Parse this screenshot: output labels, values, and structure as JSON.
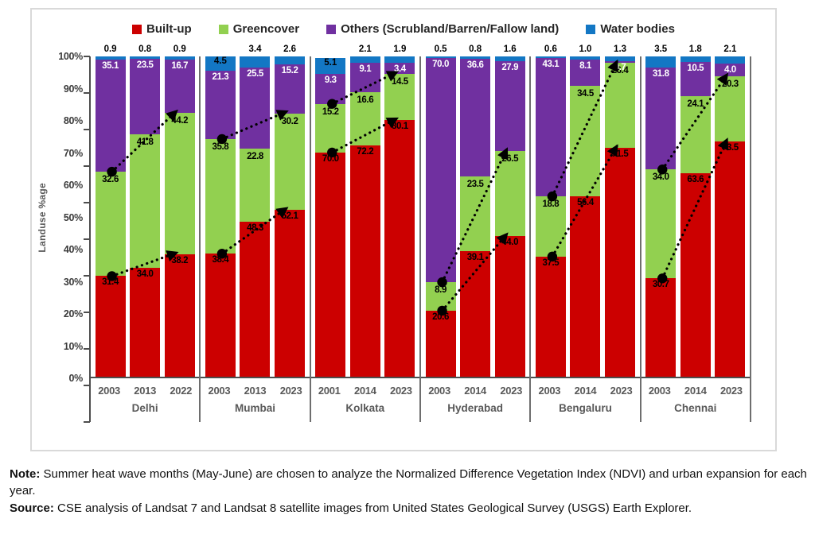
{
  "chart_data": {
    "type": "bar",
    "stacked": true,
    "title": "",
    "ylabel": "Landuse %age",
    "ylim": [
      0,
      100
    ],
    "yticks": [
      "0%",
      "10%",
      "20%",
      "30%",
      "40%",
      "50%",
      "60%",
      "70%",
      "80%",
      "90%",
      "100%"
    ],
    "grid": false,
    "legend_position": "top",
    "legend": [
      {
        "label": "Built-up",
        "color": "#CC0000"
      },
      {
        "label": "Greencover",
        "color": "#92D050"
      },
      {
        "label": "Others (Scrubland/Barren/Fallow land)",
        "color": "#7030A0"
      },
      {
        "label": "Water bodies",
        "color": "#1377C4"
      }
    ],
    "series_keys": [
      "built_up",
      "greencover",
      "others",
      "water"
    ],
    "annotations": "dotted black arrows with start dots show rise of built-up top and greencover top from first year bar to last year bar in each city group",
    "groups": [
      {
        "city": "Delhi",
        "bars": [
          {
            "year": "2003",
            "built_up": "31.4",
            "greencover": "32.6",
            "others": "35.1",
            "water": "0.9"
          },
          {
            "year": "2013",
            "built_up": "34.0",
            "greencover": "41.8",
            "others": "23.5",
            "water": "0.8"
          },
          {
            "year": "2022",
            "built_up": "38.2",
            "greencover": "44.2",
            "others": "16.7",
            "water": "0.9"
          }
        ]
      },
      {
        "city": "Mumbai",
        "bars": [
          {
            "year": "2003",
            "built_up": "38.4",
            "greencover": "35.8",
            "others": "21.3",
            "water": "4.5"
          },
          {
            "year": "2013",
            "built_up": "48.3",
            "greencover": "22.8",
            "others": "25.5",
            "water": "3.4"
          },
          {
            "year": "2023",
            "built_up": "52.1",
            "greencover": "30.2",
            "others": "15.2",
            "water": "2.6"
          }
        ]
      },
      {
        "city": "Kolkata",
        "bars": [
          {
            "year": "2001",
            "built_up": "70.0",
            "greencover": "15.2",
            "others": "9.3",
            "water": "5.1"
          },
          {
            "year": "2014",
            "built_up": "72.2",
            "greencover": "16.6",
            "others": "9.1",
            "water": "2.1"
          },
          {
            "year": "2023",
            "built_up": "80.1",
            "greencover": "14.5",
            "others": "3.4",
            "water": "1.9"
          }
        ]
      },
      {
        "city": "Hyderabad",
        "bars": [
          {
            "year": "2003",
            "built_up": "20.6",
            "greencover": "8.9",
            "others": "70.0",
            "water": "0.5"
          },
          {
            "year": "2014",
            "built_up": "39.1",
            "greencover": "23.5",
            "others": "36.6",
            "water": "0.8"
          },
          {
            "year": "2023",
            "built_up": "44.0",
            "greencover": "26.5",
            "others": "27.9",
            "water": "1.6"
          }
        ]
      },
      {
        "city": "Bengaluru",
        "bars": [
          {
            "year": "2003",
            "built_up": "37.5",
            "greencover": "18.8",
            "others": "43.1",
            "water": "0.6"
          },
          {
            "year": "2014",
            "built_up": "56.4",
            "greencover": "34.5",
            "others": "8.1",
            "water": "1.0"
          },
          {
            "year": "2023",
            "built_up": "71.5",
            "greencover": "26.4",
            "others": "0.7",
            "water": "1.3"
          }
        ]
      },
      {
        "city": "Chennai",
        "bars": [
          {
            "year": "2003",
            "built_up": "30.7",
            "greencover": "34.0",
            "others": "31.8",
            "water": "3.5"
          },
          {
            "year": "2014",
            "built_up": "63.6",
            "greencover": "24.1",
            "others": "10.5",
            "water": "1.8"
          },
          {
            "year": "2023",
            "built_up": "73.5",
            "greencover": "20.3",
            "others": "4.0",
            "water": "2.1"
          }
        ]
      }
    ]
  },
  "footnote": {
    "note_label": "Note:",
    "note_text": " Summer heat wave months (May-June) are chosen to analyze the Normalized Difference Vegetation Index (NDVI) and urban expansion for each year.",
    "source_label": "Source:",
    "source_text": " CSE analysis of Landsat 7 and Landsat 8 satellite images from United States Geological Survey (USGS) Earth Explorer."
  }
}
